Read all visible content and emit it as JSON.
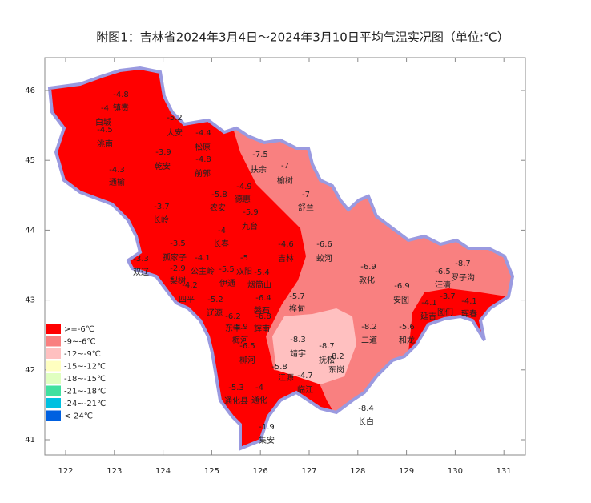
{
  "title": "附图1：吉林省2024年3月4日～2024年3月10日平均气温实况图（单位:℃）",
  "axes": {
    "xticks": [
      122,
      123,
      124,
      125,
      126,
      127,
      128,
      129,
      130,
      131
    ],
    "yticks": [
      41,
      42,
      43,
      44,
      45,
      46
    ]
  },
  "legend": [
    {
      "label": ">=-6℃",
      "color": "#ff0000"
    },
    {
      "label": "-9~-6℃",
      "color": "#f98080"
    },
    {
      "label": "-12~-9℃",
      "color": "#ffc0c0"
    },
    {
      "label": "-15~-12℃",
      "color": "#ffffc0"
    },
    {
      "label": "-18~-15℃",
      "color": "#e0ffc0"
    },
    {
      "label": "-21~-18℃",
      "color": "#40e0a0"
    },
    {
      "label": "-24~-21℃",
      "color": "#00c0e0"
    },
    {
      "label": "<-24℃",
      "color": "#0060e0"
    }
  ],
  "stations": [
    {
      "name": "镇赉",
      "value": -4.8
    },
    {
      "name": "白城",
      "value": -4
    },
    {
      "name": "洮南",
      "value": -4.5
    },
    {
      "name": "大安",
      "value": -5.2
    },
    {
      "name": "松原",
      "value": -4.4
    },
    {
      "name": "乾安",
      "value": -3.9
    },
    {
      "name": "前郭",
      "value": -4.8
    },
    {
      "name": "通榆",
      "value": -4.3
    },
    {
      "name": "扶余",
      "value": -7.5
    },
    {
      "name": "榆树",
      "value": -7
    },
    {
      "name": "舒兰",
      "value": -7
    },
    {
      "name": "德惠",
      "value": -4.9
    },
    {
      "name": "农安",
      "value": -5.8
    },
    {
      "name": "长岭",
      "value": -3.7
    },
    {
      "name": "九台",
      "value": -5.9
    },
    {
      "name": "长春",
      "value": -4
    },
    {
      "name": "吉林",
      "value": -4.6
    },
    {
      "name": "蛟河",
      "value": -6.6
    },
    {
      "name": "双辽",
      "value": -3.3
    },
    {
      "name": "孤家子",
      "value": -3.5
    },
    {
      "name": "梨树",
      "value": -2.9
    },
    {
      "name": "公主岭",
      "value": -4.1
    },
    {
      "name": "双阳",
      "value": -5
    },
    {
      "name": "伊通",
      "value": -5.5
    },
    {
      "name": "四平",
      "value": -4.2
    },
    {
      "name": "烟筒山",
      "value": -5.4
    },
    {
      "name": "辽源",
      "value": -5.2
    },
    {
      "name": "东丰",
      "value": -6.2
    },
    {
      "name": "磐石",
      "value": -6.4
    },
    {
      "name": "桦甸",
      "value": -5.7
    },
    {
      "name": "梅河",
      "value": -5.9
    },
    {
      "name": "辉南",
      "value": -6.8
    },
    {
      "name": "柳河",
      "value": -6.5
    },
    {
      "name": "靖宇",
      "value": -8.3
    },
    {
      "name": "抚松",
      "value": -8.7
    },
    {
      "name": "东岗",
      "value": -8.2
    },
    {
      "name": "江源",
      "value": -5.8
    },
    {
      "name": "临江",
      "value": -4.7
    },
    {
      "name": "通化县",
      "value": -5.3
    },
    {
      "name": "通化",
      "value": -4
    },
    {
      "name": "集安",
      "value": -1.9
    },
    {
      "name": "长白",
      "value": -8.4
    },
    {
      "name": "敦化",
      "value": -6.9
    },
    {
      "name": "安图",
      "value": -6.9
    },
    {
      "name": "二道",
      "value": -8.2
    },
    {
      "name": "和龙",
      "value": -5.6
    },
    {
      "name": "汪清",
      "value": -6.5
    },
    {
      "name": "罗子沟",
      "value": -8.7
    },
    {
      "name": "延吉",
      "value": -4.1
    },
    {
      "name": "图们",
      "value": -3.7
    },
    {
      "name": "珲春",
      "value": -4.1
    }
  ]
}
